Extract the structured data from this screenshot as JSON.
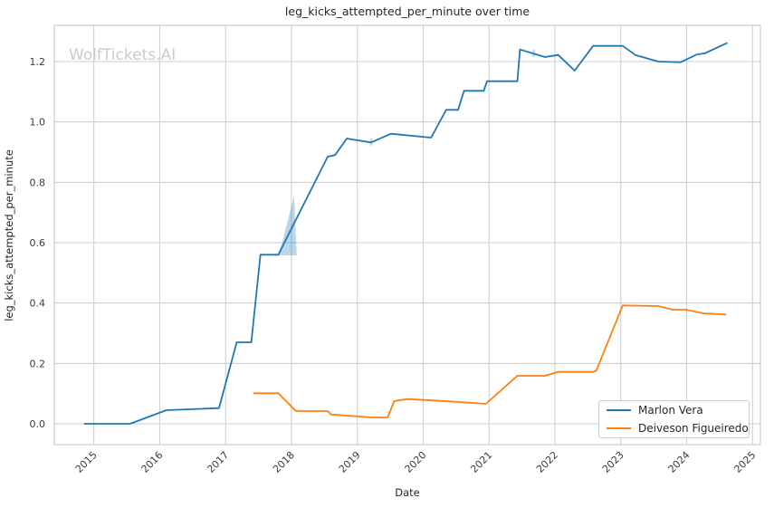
{
  "watermark": "WolfTickets.AI",
  "colors": {
    "series_blue": "#1f77b4",
    "series_orange": "#ff7f0e",
    "grid": "#cccccc",
    "axes_border": "#cccccc",
    "band_fill": "rgba(31,119,180,0.30)",
    "text": "#262626",
    "watermark": "#cbcbcb",
    "background": "#ffffff"
  },
  "chart_data": {
    "type": "line",
    "title": "leg_kicks_attempted_per_minute over time",
    "xlabel": "Date",
    "ylabel": "leg_kicks_attempted_per_minute",
    "x_ticks": [
      2015,
      2016,
      2017,
      2018,
      2019,
      2020,
      2021,
      2022,
      2023,
      2024,
      2025
    ],
    "y_ticks": [
      0.0,
      0.2,
      0.4,
      0.6,
      0.8,
      1.0,
      1.2
    ],
    "xlim": [
      2014.4,
      2025.12
    ],
    "ylim": [
      -0.069,
      1.32
    ],
    "grid": true,
    "legend_position": "lower right",
    "series": [
      {
        "name": "Marlon Vera",
        "color": "#1f77b4",
        "points": [
          [
            2014.85,
            0.0
          ],
          [
            2015.55,
            0.0
          ],
          [
            2016.1,
            0.045
          ],
          [
            2016.9,
            0.052
          ],
          [
            2017.17,
            0.27
          ],
          [
            2017.39,
            0.27
          ],
          [
            2017.53,
            0.56
          ],
          [
            2017.8,
            0.56
          ],
          [
            2018.55,
            0.885
          ],
          [
            2018.66,
            0.89
          ],
          [
            2018.84,
            0.945
          ],
          [
            2019.21,
            0.932
          ],
          [
            2019.51,
            0.961
          ],
          [
            2020.12,
            0.948
          ],
          [
            2020.35,
            1.04
          ],
          [
            2020.53,
            1.04
          ],
          [
            2020.62,
            1.103
          ],
          [
            2020.92,
            1.103
          ],
          [
            2020.97,
            1.135
          ],
          [
            2021.43,
            1.135
          ],
          [
            2021.47,
            1.24
          ],
          [
            2021.85,
            1.215
          ],
          [
            2022.05,
            1.222
          ],
          [
            2022.3,
            1.17
          ],
          [
            2022.58,
            1.252
          ],
          [
            2023.03,
            1.252
          ],
          [
            2023.22,
            1.222
          ],
          [
            2023.57,
            1.2
          ],
          [
            2023.91,
            1.198
          ],
          [
            2024.16,
            1.224
          ],
          [
            2024.27,
            1.227
          ],
          [
            2024.62,
            1.262
          ]
        ]
      },
      {
        "name": "Deiveson Figueiredo",
        "color": "#ff7f0e",
        "points": [
          [
            2017.42,
            0.101
          ],
          [
            2017.8,
            0.101
          ],
          [
            2018.07,
            0.042
          ],
          [
            2018.55,
            0.042
          ],
          [
            2018.6,
            0.031
          ],
          [
            2019.22,
            0.021
          ],
          [
            2019.46,
            0.021
          ],
          [
            2019.56,
            0.075
          ],
          [
            2019.76,
            0.082
          ],
          [
            2020.02,
            0.079
          ],
          [
            2020.4,
            0.074
          ],
          [
            2020.95,
            0.066
          ],
          [
            2021.43,
            0.159
          ],
          [
            2021.85,
            0.159
          ],
          [
            2022.05,
            0.172
          ],
          [
            2022.58,
            0.172
          ],
          [
            2022.63,
            0.177
          ],
          [
            2023.03,
            0.392
          ],
          [
            2023.57,
            0.39
          ],
          [
            2023.79,
            0.378
          ],
          [
            2023.99,
            0.378
          ],
          [
            2024.25,
            0.366
          ],
          [
            2024.6,
            0.362
          ]
        ]
      }
    ],
    "error_bands": [
      {
        "type": "polygon",
        "series": "Marlon Vera",
        "points": [
          [
            2017.81,
            0.558
          ],
          [
            2018.08,
            0.558
          ],
          [
            2018.04,
            0.756
          ]
        ]
      },
      {
        "type": "vline",
        "series": "Marlon Vera",
        "x": 2019.21,
        "y0": 0.922,
        "y1": 0.945
      },
      {
        "type": "vline",
        "series": "Marlon Vera",
        "x": 2021.68,
        "y0": 1.215,
        "y1": 1.24
      }
    ]
  },
  "legend": {
    "items": [
      {
        "label": "Marlon Vera",
        "color": "#1f77b4"
      },
      {
        "label": "Deiveson Figueiredo",
        "color": "#ff7f0e"
      }
    ]
  }
}
